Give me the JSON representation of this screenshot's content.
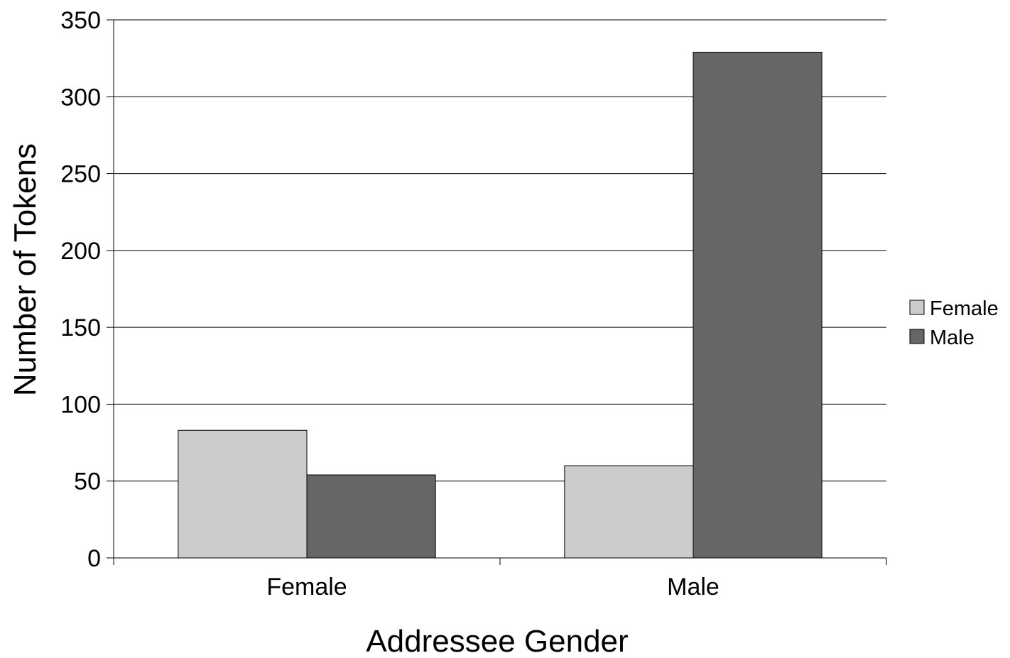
{
  "chart_data": {
    "type": "bar",
    "title": "",
    "xlabel": "Addressee Gender",
    "ylabel": "Number of Tokens",
    "categories": [
      "Female",
      "Male"
    ],
    "series": [
      {
        "name": "Female",
        "color": "#cccccc",
        "values": [
          83,
          60
        ]
      },
      {
        "name": "Male",
        "color": "#666666",
        "values": [
          54,
          329
        ]
      }
    ],
    "ylim": [
      0,
      350
    ],
    "yticks": [
      0,
      50,
      100,
      150,
      200,
      250,
      300,
      350
    ],
    "grid": true,
    "legend_position": "right"
  }
}
